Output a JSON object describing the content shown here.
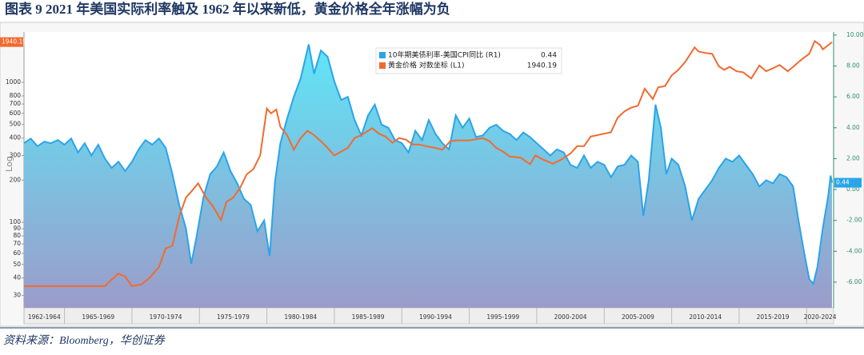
{
  "chart_data": {
    "type": "line",
    "title": "图表 9   2021 年美国实际利率触及 1962 年以来新低，黄金价格全年涨幅为负",
    "source": "资料来源：Bloomberg，华创证券",
    "ylabel": "Log",
    "log_y": true,
    "grid": false,
    "xlim": [
      1962,
      2022
    ],
    "xticks": [
      {
        "value": 1962,
        "label": "1962-1964"
      },
      {
        "value": 1965,
        "label": "1965-1969"
      },
      {
        "value": 1970,
        "label": "1970-1974"
      },
      {
        "value": 1975,
        "label": "1975-1979"
      },
      {
        "value": 1980,
        "label": "1980-1984"
      },
      {
        "value": 1985,
        "label": "1985-1989"
      },
      {
        "value": 1990,
        "label": "1990-1994"
      },
      {
        "value": 1995,
        "label": "1995-1999"
      },
      {
        "value": 2000,
        "label": "2000-2004"
      },
      {
        "value": 2005,
        "label": "2005-2009"
      },
      {
        "value": 2010,
        "label": "2010-2014"
      },
      {
        "value": 2015,
        "label": "2015-2019"
      },
      {
        "value": 2020,
        "label": "2020-2024"
      }
    ],
    "ylim": [
      24.5,
      2290
    ],
    "yticks": [
      30,
      40,
      50,
      60,
      70,
      80,
      90,
      100,
      200,
      300,
      400,
      500,
      600,
      700,
      800,
      1000
    ],
    "y2lim": [
      -7.66,
      10.2
    ],
    "y2ticks": [
      {
        "value": -6,
        "label": "-6.00"
      },
      {
        "value": -4,
        "label": "-4.00"
      },
      {
        "value": -2,
        "label": "-2.00"
      },
      {
        "value": 0,
        "label": "0.00"
      },
      {
        "value": 2,
        "label": "2.00"
      },
      {
        "value": 4,
        "label": "4.00"
      },
      {
        "value": 6,
        "label": "6.00"
      },
      {
        "value": 8,
        "label": "8.00"
      },
      {
        "value": 10,
        "label": "10.00"
      }
    ],
    "series": [
      {
        "name": "10年期美债利率-美国CPI同比 (R1)",
        "color": "#2aa4ea",
        "axis": "y2",
        "area": true,
        "x": [
          1962,
          1962.5,
          1963,
          1963.5,
          1964,
          1964.5,
          1965,
          1965.5,
          1966,
          1966.5,
          1967,
          1967.5,
          1968,
          1968.5,
          1969,
          1969.5,
          1970,
          1970.5,
          1971,
          1971.5,
          1972,
          1972.5,
          1973,
          1973.5,
          1974,
          1974.4,
          1974.8,
          1975.3,
          1975.8,
          1976.3,
          1976.8,
          1977.3,
          1977.8,
          1978.3,
          1978.8,
          1979.3,
          1979.8,
          1980.2,
          1980.6,
          1981,
          1981.5,
          1982,
          1982.5,
          1983.1,
          1983.5,
          1984,
          1984.5,
          1985,
          1985.5,
          1986,
          1986.5,
          1987,
          1987.5,
          1988,
          1988.5,
          1989,
          1989.5,
          1990,
          1990.5,
          1991,
          1991.5,
          1992,
          1992.5,
          1993,
          1993.5,
          1994,
          1994.5,
          1995,
          1995.5,
          1996,
          1996.5,
          1997,
          1997.5,
          1998,
          1998.5,
          1999,
          1999.5,
          2000,
          2000.5,
          2001,
          2001.5,
          2002,
          2002.5,
          2003,
          2003.5,
          2004,
          2004.5,
          2005,
          2005.5,
          2006,
          2006.5,
          2007,
          2007.5,
          2007.9,
          2008.3,
          2008.8,
          2009.2,
          2009.6,
          2010,
          2010.5,
          2011,
          2011.5,
          2012,
          2012.5,
          2013,
          2013.5,
          2014,
          2014.5,
          2015,
          2015.5,
          2016,
          2016.5,
          2017,
          2017.5,
          2018,
          2018.5,
          2019,
          2019.4,
          2019.8,
          2020.2,
          2020.5,
          2020.8,
          2021.2,
          2021.6,
          2021.78,
          2021.88
        ],
        "values": [
          3.0,
          3.3,
          2.8,
          3.1,
          3.0,
          3.2,
          2.9,
          3.3,
          2.4,
          3.0,
          2.2,
          2.9,
          2.0,
          1.4,
          1.8,
          1.2,
          1.8,
          2.6,
          3.2,
          2.9,
          3.3,
          2.7,
          1.0,
          -1.0,
          -2.5,
          -4.8,
          -3.0,
          -0.5,
          1.0,
          1.5,
          2.4,
          1.2,
          0.4,
          -0.6,
          -1.0,
          -2.7,
          -2.0,
          -4.3,
          0.5,
          3.0,
          4.6,
          6.0,
          7.2,
          9.4,
          7.5,
          9.0,
          8.6,
          7.0,
          5.8,
          6.0,
          4.5,
          3.5,
          4.8,
          5.5,
          4.2,
          4.0,
          3.2,
          3.0,
          2.4,
          3.8,
          3.2,
          4.5,
          3.6,
          3.0,
          2.6,
          4.8,
          4.0,
          4.6,
          3.4,
          3.5,
          4.0,
          4.2,
          3.8,
          3.6,
          3.2,
          3.7,
          3.4,
          3.0,
          2.6,
          2.2,
          2.6,
          2.4,
          1.6,
          1.4,
          2.2,
          1.4,
          1.8,
          1.6,
          0.8,
          1.5,
          1.6,
          2.2,
          1.8,
          -1.7,
          0.6,
          5.5,
          4.0,
          1.0,
          2.0,
          1.6,
          0.2,
          -2.0,
          -0.6,
          0.0,
          0.6,
          1.4,
          2.0,
          1.8,
          2.2,
          1.6,
          1.0,
          0.2,
          0.6,
          0.4,
          1.0,
          0.8,
          0.2,
          -2.0,
          -4.0,
          -5.8,
          -6.1,
          -5.0,
          -2.5,
          -0.4,
          0.9,
          0.44
        ]
      },
      {
        "name": "黄金价格 对数坐标 (L1)",
        "color": "#f26a2e",
        "axis": "y",
        "x": [
          1962,
          1968,
          1968.5,
          1969,
          1969.5,
          1970,
          1970.7,
          1971.3,
          1972,
          1972.5,
          1973,
          1973.5,
          1974,
          1974.5,
          1974.9,
          1975.5,
          1976,
          1976.6,
          1977,
          1977.5,
          1978,
          1978.5,
          1979,
          1979.5,
          1980,
          1980.3,
          1980.7,
          1981,
          1981.5,
          1982,
          1982.5,
          1983,
          1983.5,
          1984,
          1984.5,
          1985,
          1985.5,
          1986,
          1986.5,
          1987,
          1987.8,
          1988.3,
          1988.8,
          1989.3,
          1989.8,
          1990.3,
          1990.8,
          1991.3,
          1991.8,
          1992.5,
          1993,
          1993.6,
          1994,
          1995,
          1996,
          1996.5,
          1997,
          1997.5,
          1998,
          1998.8,
          1999.5,
          1999.9,
          2000.5,
          2001.2,
          2001.8,
          2002.5,
          2003,
          2003.5,
          2004,
          2005,
          2005.5,
          2006,
          2006.5,
          2007,
          2007.5,
          2008,
          2008.6,
          2009,
          2009.5,
          2010,
          2010.5,
          2011,
          2011.7,
          2012,
          2012.5,
          2013,
          2013.5,
          2013.9,
          2014.3,
          2014.8,
          2015.3,
          2015.9,
          2016.5,
          2017,
          2017.5,
          2018,
          2018.6,
          2019,
          2019.5,
          2019.8,
          2020.2,
          2020.6,
          2021,
          2021.2,
          2021.5,
          2021.88
        ],
        "values": [
          35,
          35,
          39,
          43,
          41,
          35,
          36,
          40,
          48,
          65,
          68,
          110,
          150,
          170,
          190,
          150,
          130,
          104,
          140,
          150,
          175,
          220,
          240,
          300,
          650,
          600,
          640,
          480,
          420,
          330,
          400,
          450,
          420,
          380,
          340,
          300,
          320,
          340,
          400,
          420,
          470,
          430,
          410,
          370,
          400,
          390,
          360,
          360,
          350,
          340,
          330,
          380,
          385,
          385,
          400,
          380,
          340,
          320,
          295,
          290,
          260,
          300,
          280,
          262,
          280,
          310,
          350,
          350,
          410,
          430,
          440,
          560,
          620,
          660,
          680,
          900,
          760,
          920,
          940,
          1120,
          1230,
          1400,
          1780,
          1660,
          1620,
          1600,
          1300,
          1230,
          1290,
          1200,
          1180,
          1065,
          1320,
          1200,
          1260,
          1330,
          1200,
          1290,
          1420,
          1500,
          1600,
          1970,
          1850,
          1720,
          1810,
          1940.19
        ]
      }
    ]
  }
}
